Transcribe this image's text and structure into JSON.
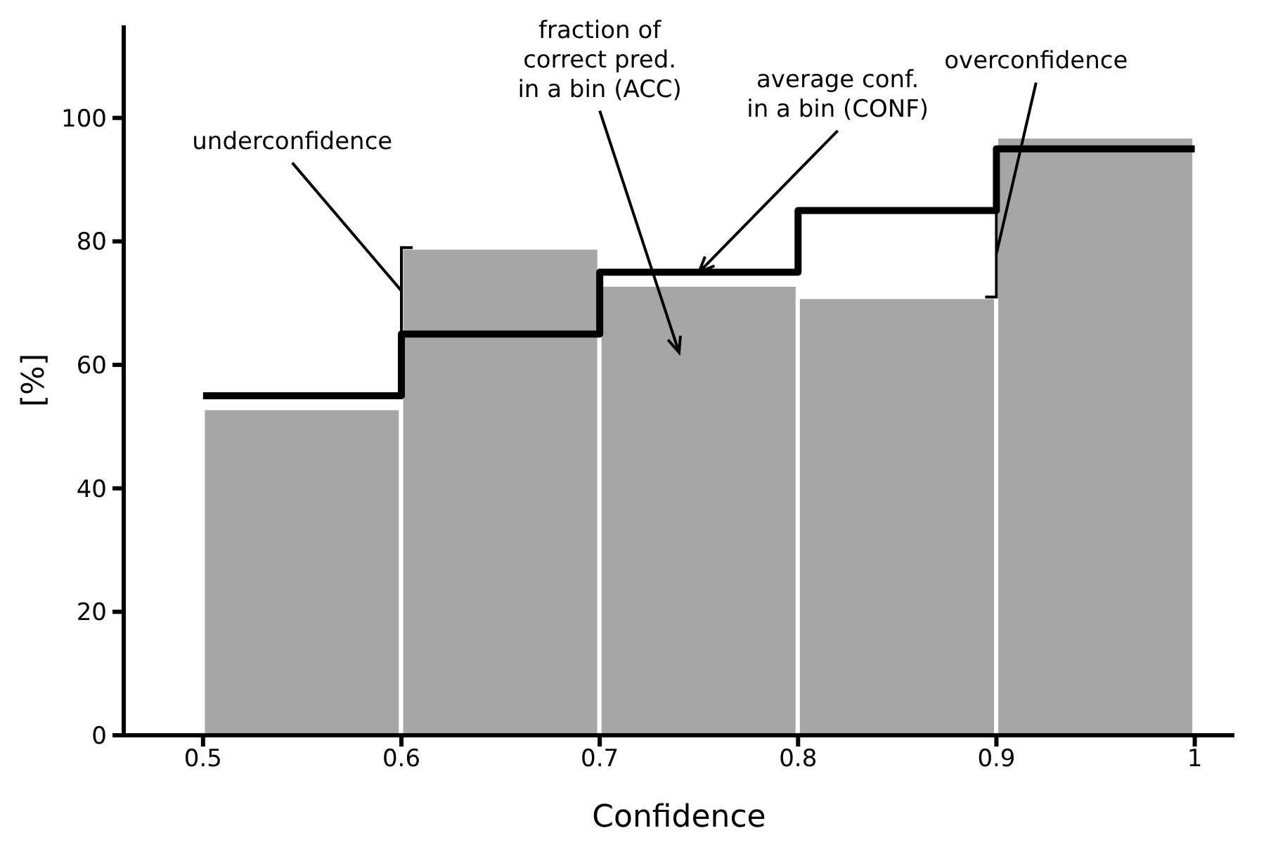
{
  "chart_data": {
    "type": "histogram",
    "xlabel": "Confidence",
    "ylabel": "[%]",
    "bins": [
      0.5,
      0.6,
      0.7,
      0.8,
      0.9,
      1.0
    ],
    "values": [
      53,
      79,
      73,
      71,
      97
    ],
    "color": "#a6a6a6",
    "series": [
      {
        "type": "step",
        "x": [
          0.5,
          0.6,
          0.7,
          0.8,
          0.9,
          1.0
        ],
        "values": [
          55,
          65,
          75,
          85,
          95,
          95
        ],
        "color": "#000000"
      }
    ],
    "xlim": [
      0.46,
      1.02
    ],
    "ylim": [
      0,
      115
    ],
    "xticks": [
      0.5,
      0.6,
      0.7,
      0.8,
      0.9,
      {
        "value": 1.0,
        "label": "1"
      }
    ],
    "yticks": [
      0,
      20,
      40,
      60,
      80,
      100
    ],
    "annotations": [
      {
        "text": "underconfidence",
        "x": 0.6,
        "y": 72
      },
      "fraction of\ncorrect pred.\nin a bin (ACC)",
      {
        "text": "average conf.\nin a bin (CONF)",
        "x": 0.75,
        "y": 75
      },
      {
        "text": "overconfidence",
        "x": 0.9,
        "y": 78
      }
    ]
  }
}
